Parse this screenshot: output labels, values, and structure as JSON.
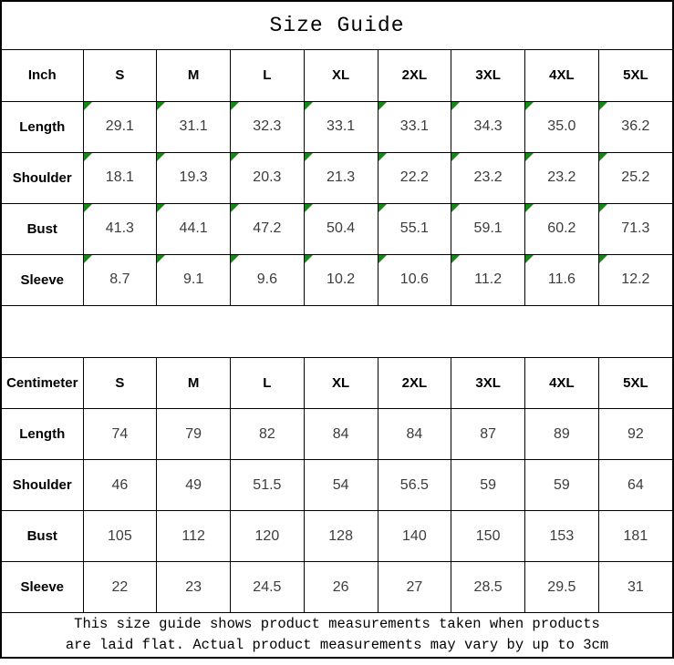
{
  "title": "Size Guide",
  "colors": {
    "marker_green": "#148a14",
    "border": "#000000",
    "value_text": "#3c3c3c"
  },
  "inch_table": {
    "unit_label": "Inch",
    "sizes": [
      "S",
      "M",
      "L",
      "XL",
      "2XL",
      "3XL",
      "4XL",
      "5XL"
    ],
    "rows": [
      {
        "label": "Length",
        "values": [
          "29.1",
          "31.1",
          "32.3",
          "33.1",
          "33.1",
          "34.3",
          "35.0",
          "36.2"
        ]
      },
      {
        "label": "Shoulder",
        "values": [
          "18.1",
          "19.3",
          "20.3",
          "21.3",
          "22.2",
          "23.2",
          "23.2",
          "25.2"
        ]
      },
      {
        "label": "Bust",
        "values": [
          "41.3",
          "44.1",
          "47.2",
          "50.4",
          "55.1",
          "59.1",
          "60.2",
          "71.3"
        ]
      },
      {
        "label": "Sleeve",
        "values": [
          "8.7",
          "9.1",
          "9.6",
          "10.2",
          "10.6",
          "11.2",
          "11.6",
          "12.2"
        ]
      }
    ]
  },
  "cm_table": {
    "unit_label": "Centimeter",
    "sizes": [
      "S",
      "M",
      "L",
      "XL",
      "2XL",
      "3XL",
      "4XL",
      "5XL"
    ],
    "rows": [
      {
        "label": "Length",
        "values": [
          "74",
          "79",
          "82",
          "84",
          "84",
          "87",
          "89",
          "92"
        ]
      },
      {
        "label": "Shoulder",
        "values": [
          "46",
          "49",
          "51.5",
          "54",
          "56.5",
          "59",
          "59",
          "64"
        ]
      },
      {
        "label": "Bust",
        "values": [
          "105",
          "112",
          "120",
          "128",
          "140",
          "150",
          "153",
          "181"
        ]
      },
      {
        "label": "Sleeve",
        "values": [
          "22",
          "23",
          "24.5",
          "26",
          "27",
          "28.5",
          "29.5",
          "31"
        ]
      }
    ]
  },
  "footer": {
    "line1": "This size guide shows product measurements taken when products",
    "line2": "are laid flat. Actual product measurements may vary by up to 3cm"
  }
}
